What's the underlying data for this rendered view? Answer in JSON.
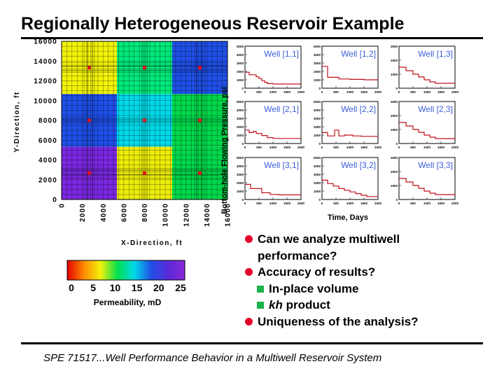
{
  "title": "Regionally Heterogeneous Reservoir Example",
  "footer": "SPE 71517...Well Performance Behavior in a Multiwell Reservoir System",
  "bullets": {
    "b1_line1": "Can we analyze multiwell",
    "b1_line2": "performance?",
    "b2": "Accuracy of results?",
    "sub1": "In-place volume",
    "sub2_kh": "kh",
    "sub2_rest": " product",
    "b3": "Uniqueness of the analysis?"
  },
  "colors": {
    "bullet_dot": "#e4002b",
    "sub_square": "#1bb34a",
    "well_label": "#3a5ed8",
    "curve": "#c0101a",
    "well_marker": "#e0101a"
  },
  "chart_data": [
    {
      "type": "heatmap",
      "xlabel": "X-Direction, ft",
      "ylabel": "Y-Direction, ft",
      "xlim": [
        0,
        16000
      ],
      "ylim": [
        0,
        16000
      ],
      "x_ticks": [
        "0",
        "2000",
        "4000",
        "6000",
        "8000",
        "10000",
        "12000",
        "14000",
        "16000"
      ],
      "y_ticks": [
        "0",
        "2000",
        "4000",
        "6000",
        "8000",
        "10000",
        "12000",
        "14000",
        "16000"
      ],
      "regions": [
        {
          "row": 1,
          "col": 1,
          "color": "#f2f20a"
        },
        {
          "row": 1,
          "col": 2,
          "color": "#00e87a"
        },
        {
          "row": 1,
          "col": 3,
          "color": "#1f4fe6"
        },
        {
          "row": 2,
          "col": 1,
          "color": "#1f4fe6"
        },
        {
          "row": 2,
          "col": 2,
          "color": "#00d8e8"
        },
        {
          "row": 2,
          "col": 3,
          "color": "#00d84a"
        },
        {
          "row": 3,
          "col": 1,
          "color": "#7a28e0"
        },
        {
          "row": 3,
          "col": 2,
          "color": "#ecec0a"
        },
        {
          "row": 3,
          "col": 3,
          "color": "#00d84a"
        }
      ],
      "wells": [
        {
          "x": 2667,
          "y": 13333
        },
        {
          "x": 8000,
          "y": 13333
        },
        {
          "x": 13333,
          "y": 13333
        },
        {
          "x": 2667,
          "y": 8000
        },
        {
          "x": 8000,
          "y": 8000
        },
        {
          "x": 13333,
          "y": 8000
        },
        {
          "x": 2667,
          "y": 2667
        },
        {
          "x": 8000,
          "y": 2667
        },
        {
          "x": 13333,
          "y": 2667
        }
      ]
    },
    {
      "type": "bar",
      "orientation": "horizontal-colorbar",
      "xlabel": "Permeability, mD",
      "xlim": [
        0,
        25
      ],
      "ticks": [
        "0",
        "5",
        "10",
        "15",
        "20",
        "25"
      ],
      "stops": [
        "#e40000",
        "#ff8a00",
        "#f2f20a",
        "#00e050",
        "#00d8e8",
        "#1f4fe6",
        "#5a2ad8",
        "#8a28d8"
      ]
    },
    {
      "type": "line",
      "ylabel": "Bottom-hole Flowing Pressure, psi",
      "xlabel": "Time, Days",
      "xlim": [
        0,
        2000
      ],
      "x_ticks": [
        "0",
        "500",
        "1000",
        "1500",
        "2000"
      ],
      "panels": [
        {
          "label": "Well [1,1]",
          "ylim": [
            0,
            5000
          ],
          "y_ticks": [
            "0",
            "1000",
            "2000",
            "3000",
            "4000",
            "5000"
          ],
          "x": [
            0,
            150,
            150,
            400,
            400,
            500,
            500,
            600,
            600,
            700,
            700,
            800,
            800,
            1000,
            1000,
            2000
          ],
          "y": [
            1900,
            1900,
            1600,
            1600,
            1350,
            1350,
            1150,
            1150,
            900,
            900,
            700,
            700,
            550,
            550,
            500,
            500
          ]
        },
        {
          "label": "Well [1,2]",
          "ylim": [
            0,
            5000
          ],
          "y_ticks": [
            "0",
            "1000",
            "2000",
            "3000",
            "4000",
            "5000"
          ],
          "x": [
            0,
            200,
            200,
            600,
            600,
            1000,
            1000,
            1500,
            1500,
            2000
          ],
          "y": [
            2600,
            2600,
            1300,
            1300,
            1100,
            1100,
            1050,
            1050,
            1000,
            1000
          ]
        },
        {
          "label": "Well [1,3]",
          "ylim": [
            0,
            3000
          ],
          "y_ticks": [
            "0",
            "1000",
            "2000",
            "3000"
          ],
          "x": [
            0,
            250,
            250,
            500,
            500,
            700,
            700,
            900,
            900,
            1100,
            1100,
            1300,
            1300,
            2000
          ],
          "y": [
            1500,
            1500,
            1250,
            1250,
            1000,
            1000,
            800,
            800,
            600,
            600,
            450,
            450,
            350,
            350
          ]
        },
        {
          "label": "Well [2,1]",
          "ylim": [
            0,
            5000
          ],
          "y_ticks": [
            "0",
            "1000",
            "2000",
            "3000",
            "4000",
            "5000"
          ],
          "x": [
            0,
            150,
            150,
            300,
            300,
            400,
            400,
            600,
            600,
            800,
            800,
            1000,
            1000,
            2000
          ],
          "y": [
            1600,
            1600,
            1300,
            1300,
            1450,
            1450,
            1200,
            1200,
            950,
            950,
            700,
            700,
            600,
            600
          ]
        },
        {
          "label": "Well [2,2]",
          "ylim": [
            0,
            5000
          ],
          "y_ticks": [
            "0",
            "1000",
            "2000",
            "3000",
            "4000",
            "5000"
          ],
          "x": [
            0,
            200,
            200,
            450,
            450,
            600,
            600,
            800,
            800,
            1100,
            1100,
            1400,
            1400,
            2000
          ],
          "y": [
            1300,
            1300,
            900,
            900,
            1600,
            1600,
            900,
            900,
            1000,
            1000,
            900,
            900,
            850,
            850
          ]
        },
        {
          "label": "Well [2,3]",
          "ylim": [
            0,
            3000
          ],
          "y_ticks": [
            "0",
            "1000",
            "2000",
            "3000"
          ],
          "x": [
            0,
            250,
            250,
            500,
            500,
            700,
            700,
            900,
            900,
            1100,
            1100,
            1300,
            1300,
            2000
          ],
          "y": [
            1500,
            1500,
            1250,
            1250,
            1000,
            1000,
            800,
            800,
            600,
            600,
            450,
            450,
            350,
            350
          ]
        },
        {
          "label": "Well [3,1]",
          "ylim": [
            0,
            5000
          ],
          "y_ticks": [
            "0",
            "1000",
            "2000",
            "3000",
            "4000",
            "5000"
          ],
          "x": [
            0,
            200,
            200,
            600,
            600,
            900,
            900,
            1200,
            1200,
            2000
          ],
          "y": [
            1800,
            1800,
            1300,
            1300,
            800,
            800,
            600,
            600,
            550,
            550
          ]
        },
        {
          "label": "Well [3,2]",
          "ylim": [
            0,
            5000
          ],
          "y_ticks": [
            "0",
            "1000",
            "2000",
            "3000",
            "4000",
            "5000"
          ],
          "x": [
            0,
            200,
            200,
            400,
            400,
            600,
            600,
            800,
            800,
            1000,
            1000,
            1200,
            1200,
            1400,
            1400,
            1600,
            1600,
            2000
          ],
          "y": [
            2300,
            2300,
            1900,
            1900,
            1600,
            1600,
            1300,
            1300,
            1100,
            1100,
            900,
            900,
            700,
            700,
            500,
            500,
            350,
            350
          ]
        },
        {
          "label": "Well [3,3]",
          "ylim": [
            0,
            3000
          ],
          "y_ticks": [
            "0",
            "1000",
            "2000",
            "3000"
          ],
          "x": [
            0,
            250,
            250,
            500,
            500,
            700,
            700,
            900,
            900,
            1100,
            1100,
            1300,
            1300,
            2000
          ],
          "y": [
            1500,
            1500,
            1250,
            1250,
            1000,
            1000,
            800,
            800,
            600,
            600,
            450,
            450,
            350,
            350
          ]
        }
      ]
    }
  ]
}
